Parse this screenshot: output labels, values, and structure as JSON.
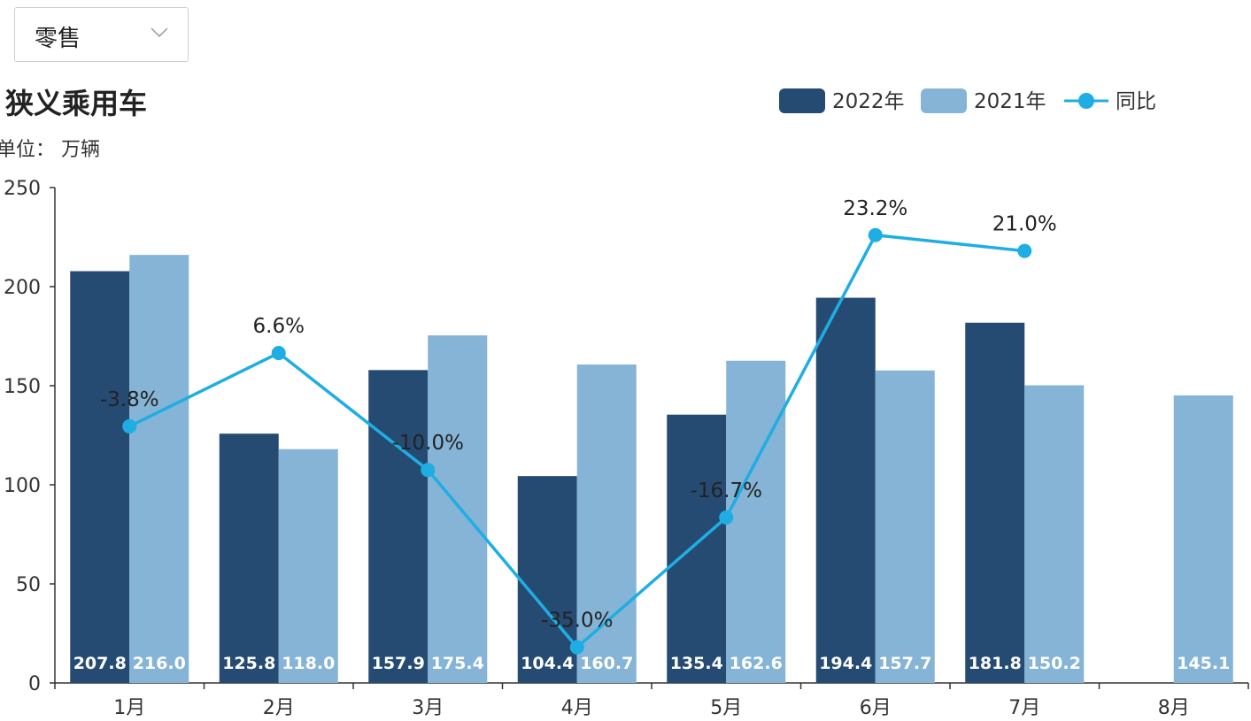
{
  "filter": {
    "selected": "零售"
  },
  "chart_data": {
    "type": "bar+line",
    "title": "狭义乘用车",
    "unit_label": "单位： 万辆",
    "categories": [
      "1月",
      "2月",
      "3月",
      "4月",
      "5月",
      "6月",
      "7月",
      "8月"
    ],
    "series": [
      {
        "name": "2022年",
        "type": "bar",
        "color": "#264B73",
        "values": [
          207.8,
          125.8,
          157.9,
          104.4,
          135.4,
          194.4,
          181.8,
          null
        ]
      },
      {
        "name": "2021年",
        "type": "bar",
        "color": "#85B4D6",
        "values": [
          216.0,
          118.0,
          175.4,
          160.7,
          162.6,
          157.7,
          150.2,
          145.1
        ]
      },
      {
        "name": "同比",
        "type": "line",
        "color": "#1EAEE3",
        "labels": [
          "-3.8%",
          "6.6%",
          "-10.0%",
          "-35.0%",
          "-16.7%",
          "23.2%",
          "21.0%"
        ],
        "plot_values": [
          129.5,
          166.5,
          107.5,
          18.0,
          83.5,
          226.0,
          218.0
        ]
      }
    ],
    "yaxis": {
      "min": 0,
      "max": 250,
      "ticks": [
        0,
        50,
        100,
        150,
        200,
        250
      ]
    },
    "legend_position": "top-right"
  }
}
